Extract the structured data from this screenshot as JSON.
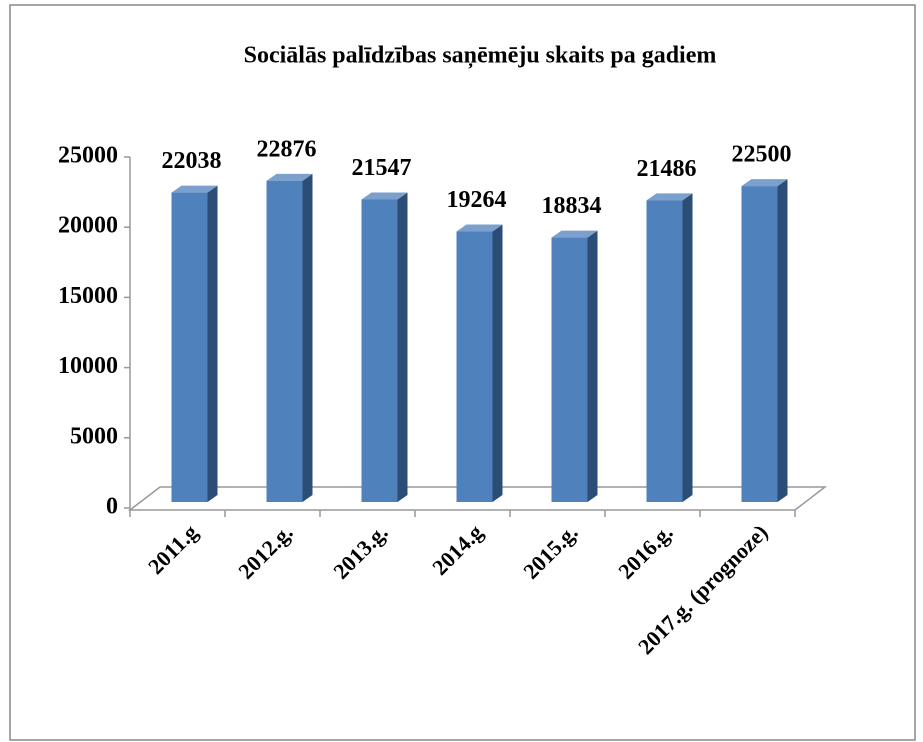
{
  "chart_data": {
    "type": "bar",
    "title": "Sociālās palīdzības saņēmēju skaits pa gadiem",
    "categories": [
      "2011.g",
      "2012.g.",
      "2013.g.",
      "2014.g",
      "2015.g.",
      "2016.g.",
      "2017.g. (prognoze)"
    ],
    "values": [
      22038,
      22876,
      21547,
      19264,
      18834,
      21486,
      22500
    ],
    "color": "#4f81bd",
    "ylim": [
      0,
      25000
    ],
    "yticks": [
      0,
      5000,
      10000,
      15000,
      20000,
      25000
    ],
    "grid": false
  }
}
